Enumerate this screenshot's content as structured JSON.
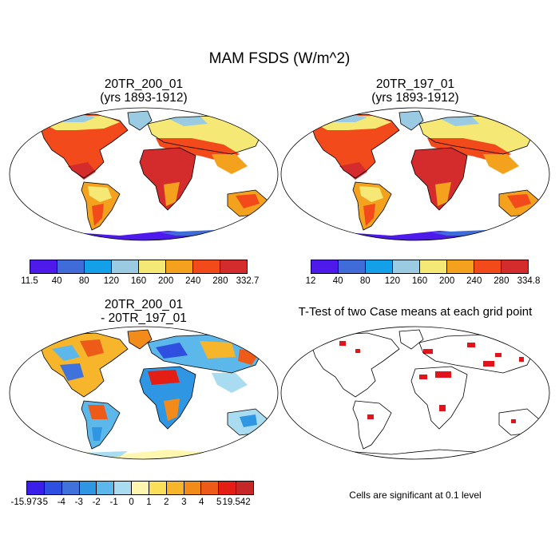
{
  "figure": {
    "title": "MAM FSDS (W/m^2)",
    "significance_note": "Cells are significant at 0.1 level"
  },
  "panels": [
    {
      "title_line1": "20TR_200_01",
      "title_line2": "(yrs 1893-1912)",
      "colorbar": {
        "colors": [
          "#4d1aeb",
          "#3f6cd9",
          "#14a0e8",
          "#9acbe3",
          "#f6e874",
          "#f4a21e",
          "#f24a1a",
          "#d42c2c"
        ],
        "labels": [
          "11.5",
          "40",
          "80",
          "120",
          "160",
          "200",
          "240",
          "280",
          "332.7"
        ]
      }
    },
    {
      "title_line1": "20TR_197_01",
      "title_line2": "(yrs 1893-1912)",
      "colorbar": {
        "colors": [
          "#4d1aeb",
          "#3f6cd9",
          "#14a0e8",
          "#9acbe3",
          "#f6e874",
          "#f4a21e",
          "#f24a1a",
          "#d42c2c"
        ],
        "labels": [
          "12",
          "40",
          "80",
          "120",
          "160",
          "200",
          "240",
          "280",
          "334.8"
        ]
      }
    },
    {
      "title_line1": "20TR_200_01",
      "title_line2": "- 20TR_197_01",
      "colorbar": {
        "colors": [
          "#3b1ee8",
          "#2f4fe0",
          "#3f72db",
          "#2f96e4",
          "#5cb8ea",
          "#a9dcf1",
          "#fff6b0",
          "#f9df5a",
          "#f6b52a",
          "#f28b1a",
          "#ee5a18",
          "#e41e14",
          "#c62828"
        ],
        "labels": [
          "-15.973",
          "-5",
          "-4",
          "-3",
          "-2",
          "-1",
          "0",
          "1",
          "2",
          "3",
          "4",
          "5",
          "19.542"
        ]
      }
    },
    {
      "title": "T-Test of two Case means at each grid point",
      "significant_color": "#e0141a"
    }
  ]
}
